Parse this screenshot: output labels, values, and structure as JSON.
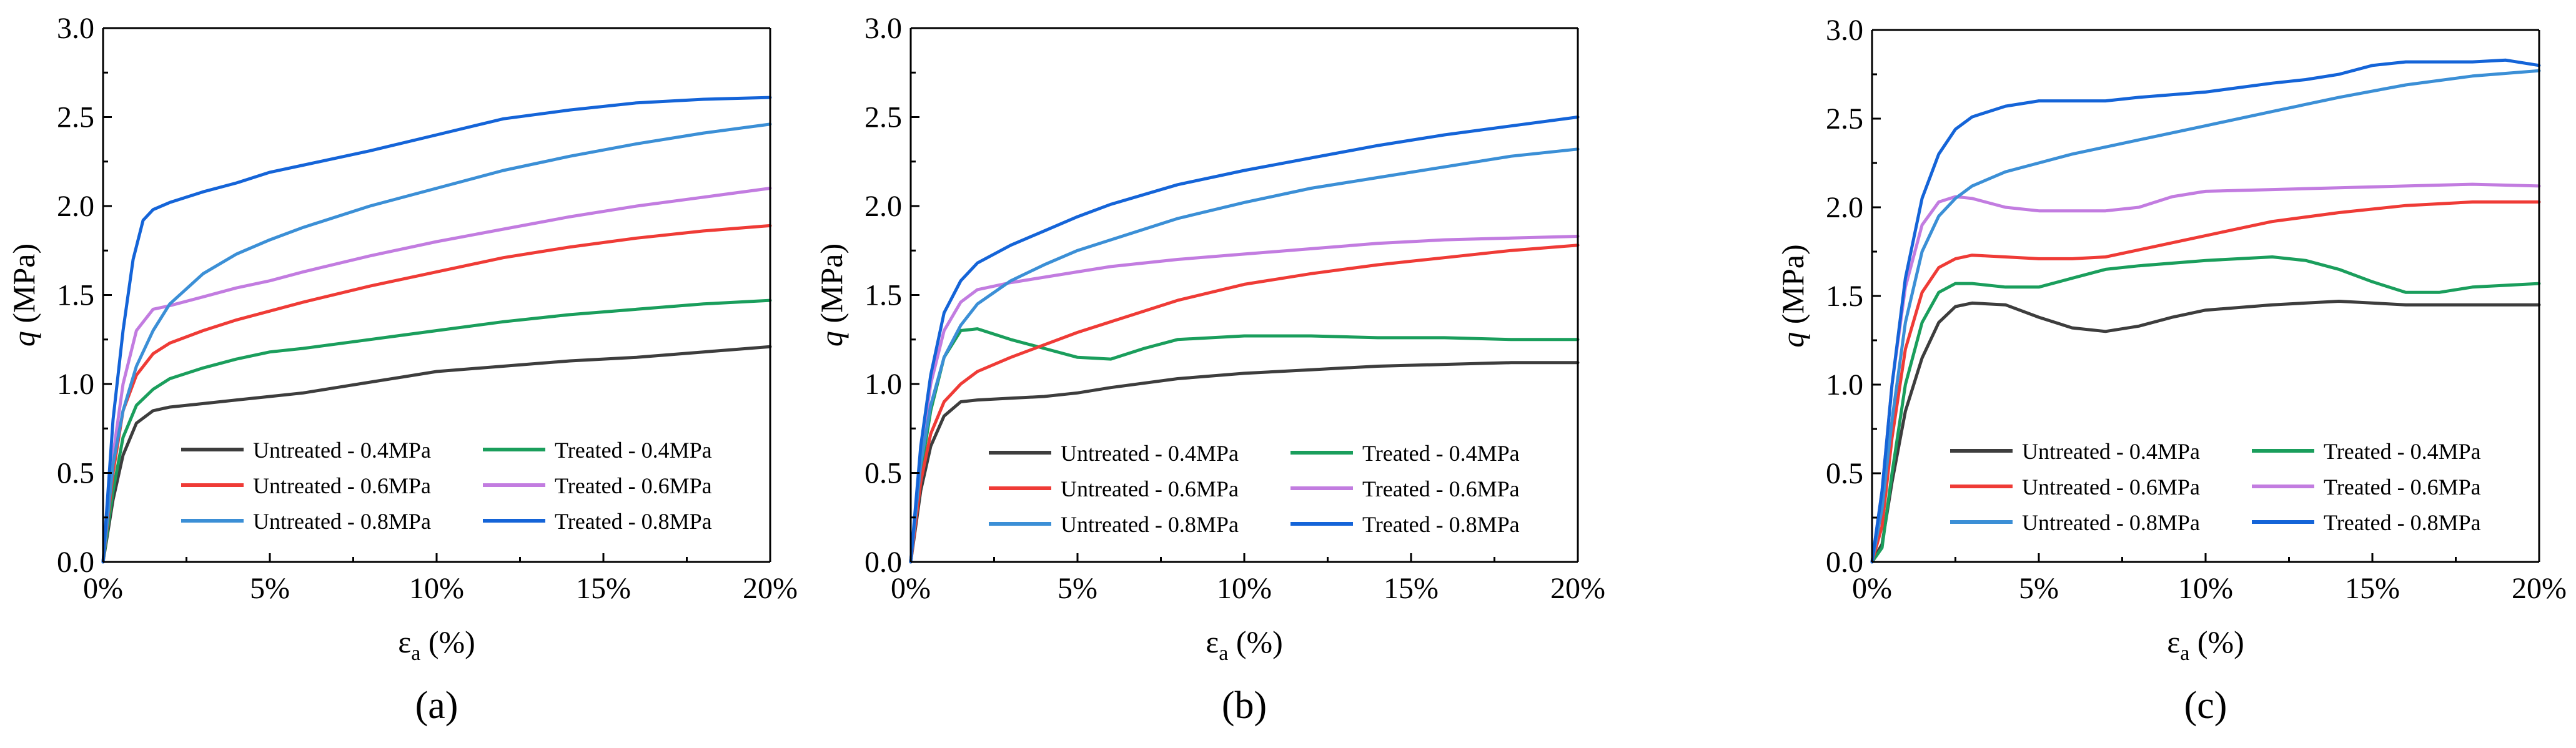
{
  "chart_data": [
    {
      "type": "line",
      "panel_label": "(a)",
      "xlabel_main": "ε",
      "xlabel_sub": "a",
      "xlabel_unit": " (%)",
      "ylabel_q": "q",
      "ylabel_unit": " (MPa)",
      "xlim": [
        0,
        20
      ],
      "ylim": [
        0,
        3.0
      ],
      "x_ticks": [
        0,
        5,
        10,
        15,
        20
      ],
      "x_tick_labels": [
        "0%",
        "5%",
        "10%",
        "15%",
        "20%"
      ],
      "y_ticks": [
        0,
        0.5,
        1.0,
        1.5,
        2.0,
        2.5,
        3.0
      ],
      "y_tick_labels": [
        "0.0",
        "0.5",
        "1.0",
        "1.5",
        "2.0",
        "2.5",
        "3.0"
      ],
      "legend_position": "bottom-right",
      "series": [
        {
          "name": "Untreated - 0.4MPa",
          "color": "#3d3d3d",
          "x": [
            0,
            0.3,
            0.6,
            1.0,
            1.5,
            2.0,
            3,
            4,
            5,
            6,
            7,
            8,
            9,
            10,
            12,
            14,
            16,
            18,
            20
          ],
          "y": [
            0,
            0.35,
            0.6,
            0.78,
            0.85,
            0.87,
            0.89,
            0.91,
            0.93,
            0.95,
            0.98,
            1.01,
            1.04,
            1.07,
            1.1,
            1.13,
            1.15,
            1.18,
            1.21
          ]
        },
        {
          "name": "Treated - 0.4MPa",
          "color": "#1a9e5c",
          "x": [
            0,
            0.3,
            0.6,
            1.0,
            1.5,
            2.0,
            3,
            4,
            5,
            6,
            8,
            10,
            12,
            14,
            16,
            18,
            20
          ],
          "y": [
            0,
            0.4,
            0.7,
            0.88,
            0.97,
            1.03,
            1.09,
            1.14,
            1.18,
            1.2,
            1.25,
            1.3,
            1.35,
            1.39,
            1.42,
            1.45,
            1.47
          ]
        },
        {
          "name": "Untreated - 0.6MPa",
          "color": "#ef3b36",
          "x": [
            0,
            0.3,
            0.6,
            1.0,
            1.5,
            2.0,
            3,
            4,
            5,
            6,
            8,
            10,
            12,
            14,
            16,
            18,
            20
          ],
          "y": [
            0,
            0.5,
            0.85,
            1.05,
            1.17,
            1.23,
            1.3,
            1.36,
            1.41,
            1.46,
            1.55,
            1.63,
            1.71,
            1.77,
            1.82,
            1.86,
            1.89
          ]
        },
        {
          "name": "Treated - 0.6MPa",
          "color": "#c27ce0",
          "x": [
            0,
            0.3,
            0.6,
            1.0,
            1.5,
            2.0,
            3,
            4,
            5,
            6,
            8,
            10,
            12,
            14,
            16,
            18,
            20
          ],
          "y": [
            0,
            0.6,
            1.0,
            1.3,
            1.42,
            1.44,
            1.49,
            1.54,
            1.58,
            1.63,
            1.72,
            1.8,
            1.87,
            1.94,
            2.0,
            2.05,
            2.1
          ]
        },
        {
          "name": "Untreated - 0.8MPa",
          "color": "#3b8fd6",
          "x": [
            0,
            0.3,
            0.6,
            1.0,
            1.5,
            2.0,
            3,
            4,
            5,
            6,
            8,
            10,
            12,
            14,
            16,
            18,
            20
          ],
          "y": [
            0,
            0.55,
            0.85,
            1.1,
            1.3,
            1.45,
            1.62,
            1.73,
            1.81,
            1.88,
            2.0,
            2.1,
            2.2,
            2.28,
            2.35,
            2.41,
            2.46
          ]
        },
        {
          "name": "Treated - 0.8MPa",
          "color": "#1464d8",
          "x": [
            0,
            0.3,
            0.6,
            0.9,
            1.2,
            1.5,
            2.0,
            3,
            4,
            5,
            6,
            8,
            10,
            12,
            14,
            16,
            18,
            20
          ],
          "y": [
            0,
            0.8,
            1.3,
            1.7,
            1.92,
            1.98,
            2.02,
            2.08,
            2.13,
            2.19,
            2.23,
            2.31,
            2.4,
            2.49,
            2.54,
            2.58,
            2.6,
            2.61
          ]
        }
      ]
    },
    {
      "type": "line",
      "panel_label": "(b)",
      "xlabel_main": "ε",
      "xlabel_sub": "a",
      "xlabel_unit": " (%)",
      "ylabel_q": "q",
      "ylabel_unit": " (MPa)",
      "xlim": [
        0,
        20
      ],
      "ylim": [
        0,
        3.0
      ],
      "x_ticks": [
        0,
        5,
        10,
        15,
        20
      ],
      "x_tick_labels": [
        "0%",
        "5%",
        "10%",
        "15%",
        "20%"
      ],
      "y_ticks": [
        0,
        0.5,
        1.0,
        1.5,
        2.0,
        2.5,
        3.0
      ],
      "y_tick_labels": [
        "0.0",
        "0.5",
        "1.0",
        "1.5",
        "2.0",
        "2.5",
        "3.0"
      ],
      "legend_position": "bottom-right",
      "series": [
        {
          "name": "Untreated - 0.4MPa",
          "color": "#3d3d3d",
          "x": [
            0,
            0.3,
            0.6,
            1.0,
            1.5,
            2.0,
            3,
            4,
            5,
            6,
            8,
            10,
            12,
            14,
            16,
            18,
            20
          ],
          "y": [
            0,
            0.4,
            0.65,
            0.82,
            0.9,
            0.91,
            0.92,
            0.93,
            0.95,
            0.98,
            1.03,
            1.06,
            1.08,
            1.1,
            1.11,
            1.12,
            1.12
          ]
        },
        {
          "name": "Treated - 0.4MPa",
          "color": "#1a9e5c",
          "x": [
            0,
            0.3,
            0.6,
            1.0,
            1.5,
            2.0,
            3,
            4,
            5,
            6,
            7,
            8,
            10,
            12,
            14,
            16,
            18,
            20
          ],
          "y": [
            0,
            0.5,
            0.85,
            1.15,
            1.3,
            1.31,
            1.25,
            1.2,
            1.15,
            1.14,
            1.2,
            1.25,
            1.27,
            1.27,
            1.26,
            1.26,
            1.25,
            1.25
          ]
        },
        {
          "name": "Untreated - 0.6MPa",
          "color": "#ef3b36",
          "x": [
            0,
            0.3,
            0.6,
            1.0,
            1.5,
            2.0,
            3,
            4,
            5,
            6,
            8,
            10,
            12,
            14,
            16,
            18,
            20
          ],
          "y": [
            0,
            0.45,
            0.72,
            0.9,
            1.0,
            1.07,
            1.15,
            1.22,
            1.29,
            1.35,
            1.47,
            1.56,
            1.62,
            1.67,
            1.71,
            1.75,
            1.78
          ]
        },
        {
          "name": "Treated - 0.6MPa",
          "color": "#c27ce0",
          "x": [
            0,
            0.3,
            0.6,
            1.0,
            1.5,
            2.0,
            3,
            4,
            5,
            6,
            8,
            10,
            12,
            14,
            16,
            18,
            20
          ],
          "y": [
            0,
            0.6,
            1.0,
            1.3,
            1.46,
            1.53,
            1.57,
            1.6,
            1.63,
            1.66,
            1.7,
            1.73,
            1.76,
            1.79,
            1.81,
            1.82,
            1.83
          ]
        },
        {
          "name": "Untreated - 0.8MPa",
          "color": "#3b8fd6",
          "x": [
            0,
            0.3,
            0.6,
            1.0,
            1.5,
            2.0,
            3,
            4,
            5,
            6,
            8,
            10,
            12,
            14,
            16,
            18,
            20
          ],
          "y": [
            0,
            0.55,
            0.88,
            1.15,
            1.33,
            1.45,
            1.58,
            1.67,
            1.75,
            1.81,
            1.93,
            2.02,
            2.1,
            2.16,
            2.22,
            2.28,
            2.32
          ]
        },
        {
          "name": "Treated - 0.8MPa",
          "color": "#1464d8",
          "x": [
            0,
            0.3,
            0.6,
            1.0,
            1.5,
            2.0,
            3,
            4,
            5,
            6,
            8,
            10,
            12,
            14,
            16,
            18,
            20
          ],
          "y": [
            0,
            0.65,
            1.05,
            1.4,
            1.58,
            1.68,
            1.78,
            1.86,
            1.94,
            2.01,
            2.12,
            2.2,
            2.27,
            2.34,
            2.4,
            2.45,
            2.5
          ]
        }
      ]
    },
    {
      "type": "line",
      "panel_label": "(c)",
      "xlabel_main": "ε",
      "xlabel_sub": "a",
      "xlabel_unit": " (%)",
      "ylabel_q": "q",
      "ylabel_unit": " (MPa)",
      "xlim": [
        0,
        20
      ],
      "ylim": [
        0,
        3.0
      ],
      "x_ticks": [
        0,
        5,
        10,
        15,
        20
      ],
      "x_tick_labels": [
        "0%",
        "5%",
        "10%",
        "15%",
        "20%"
      ],
      "y_ticks": [
        0,
        0.5,
        1.0,
        1.5,
        2.0,
        2.5,
        3.0
      ],
      "y_tick_labels": [
        "0.0",
        "0.5",
        "1.0",
        "1.5",
        "2.0",
        "2.5",
        "3.0"
      ],
      "legend_position": "bottom-right",
      "series": [
        {
          "name": "Untreated - 0.4MPa",
          "color": "#3d3d3d",
          "x": [
            0,
            0.3,
            0.6,
            1.0,
            1.5,
            2.0,
            2.5,
            3,
            4,
            5,
            6,
            7,
            8,
            9,
            10,
            12,
            14,
            16,
            18,
            20
          ],
          "y": [
            0,
            0.1,
            0.45,
            0.85,
            1.15,
            1.35,
            1.44,
            1.46,
            1.45,
            1.38,
            1.32,
            1.3,
            1.33,
            1.38,
            1.42,
            1.45,
            1.47,
            1.45,
            1.45,
            1.45
          ]
        },
        {
          "name": "Treated - 0.4MPa",
          "color": "#1a9e5c",
          "x": [
            0,
            0.3,
            0.6,
            1.0,
            1.5,
            2.0,
            2.5,
            3,
            4,
            5,
            6,
            7,
            8,
            10,
            12,
            13,
            14,
            15,
            16,
            17,
            18,
            20
          ],
          "y": [
            0,
            0.08,
            0.5,
            1.0,
            1.35,
            1.52,
            1.57,
            1.57,
            1.55,
            1.55,
            1.6,
            1.65,
            1.67,
            1.7,
            1.72,
            1.7,
            1.65,
            1.58,
            1.52,
            1.52,
            1.55,
            1.57
          ]
        },
        {
          "name": "Untreated - 0.6MPa",
          "color": "#ef3b36",
          "x": [
            0,
            0.3,
            0.6,
            1.0,
            1.5,
            2.0,
            2.5,
            3,
            4,
            5,
            6,
            7,
            8,
            10,
            12,
            14,
            16,
            18,
            20
          ],
          "y": [
            0,
            0.2,
            0.7,
            1.2,
            1.52,
            1.66,
            1.71,
            1.73,
            1.72,
            1.71,
            1.71,
            1.72,
            1.76,
            1.84,
            1.92,
            1.97,
            2.01,
            2.03,
            2.03
          ]
        },
        {
          "name": "Treated - 0.6MPa",
          "color": "#c27ce0",
          "x": [
            0,
            0.3,
            0.6,
            1.0,
            1.5,
            2.0,
            2.5,
            3,
            4,
            5,
            6,
            7,
            8,
            9,
            10,
            12,
            14,
            16,
            18,
            20
          ],
          "y": [
            0,
            0.4,
            1.0,
            1.55,
            1.9,
            2.03,
            2.06,
            2.05,
            2.0,
            1.98,
            1.98,
            1.98,
            2.0,
            2.06,
            2.09,
            2.1,
            2.11,
            2.12,
            2.13,
            2.12
          ]
        },
        {
          "name": "Untreated - 0.8MPa",
          "color": "#3b8fd6",
          "x": [
            0,
            0.3,
            0.6,
            1.0,
            1.5,
            2.0,
            2.5,
            3,
            4,
            5,
            6,
            8,
            10,
            12,
            14,
            16,
            18,
            20
          ],
          "y": [
            0,
            0.3,
            0.8,
            1.35,
            1.75,
            1.95,
            2.05,
            2.12,
            2.2,
            2.25,
            2.3,
            2.38,
            2.46,
            2.54,
            2.62,
            2.69,
            2.74,
            2.77
          ]
        },
        {
          "name": "Treated - 0.8MPa",
          "color": "#1464d8",
          "x": [
            0,
            0.3,
            0.6,
            1.0,
            1.5,
            2.0,
            2.5,
            3,
            4,
            5,
            6,
            7,
            8,
            10,
            12,
            13,
            14,
            15,
            16,
            18,
            19,
            20
          ],
          "y": [
            0,
            0.4,
            1.0,
            1.6,
            2.05,
            2.3,
            2.44,
            2.51,
            2.57,
            2.6,
            2.6,
            2.6,
            2.62,
            2.65,
            2.7,
            2.72,
            2.75,
            2.8,
            2.82,
            2.82,
            2.83,
            2.8
          ]
        }
      ]
    }
  ]
}
